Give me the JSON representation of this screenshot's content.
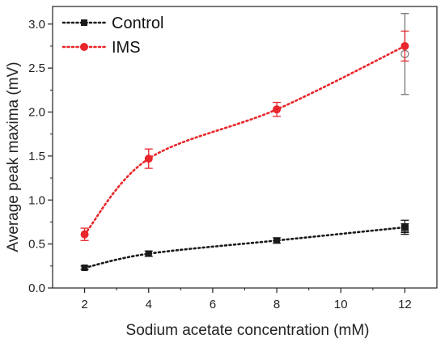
{
  "chart_data": {
    "type": "line",
    "xlabel": "Sodium acetate concentration (mM)",
    "ylabel": "Average peak maxima (mV)",
    "xlim": [
      1,
      13
    ],
    "ylim": [
      0,
      3.2
    ],
    "xticks": [
      "2",
      "4",
      "6",
      "8",
      "10",
      "12"
    ],
    "yticks": [
      "0.0",
      "0.5",
      "1.0",
      "1.5",
      "2.0",
      "2.5",
      "3.0"
    ],
    "grid": false,
    "legend_position": "top-left",
    "series": [
      {
        "name": "Control",
        "color": "#1a1a1a",
        "marker": "square",
        "line_style": "dotted",
        "x": [
          2,
          4,
          8,
          12
        ],
        "y": [
          0.23,
          0.39,
          0.54,
          0.69
        ],
        "error": [
          0.02,
          0.03,
          0.03,
          0.08
        ],
        "open_marker_x": 12,
        "open_marker_y": 0.68,
        "open_marker_error": 0.05
      },
      {
        "name": "IMS",
        "color": "#e8262b",
        "marker": "circle",
        "line_style": "dotted",
        "x": [
          2,
          4,
          8,
          12
        ],
        "y": [
          0.61,
          1.47,
          2.03,
          2.75
        ],
        "error": [
          0.07,
          0.11,
          0.08,
          0.17
        ],
        "open_marker_x": 12,
        "open_marker_y": 2.66,
        "open_marker_error": 0.46,
        "open_marker_color": "#777777"
      }
    ]
  }
}
